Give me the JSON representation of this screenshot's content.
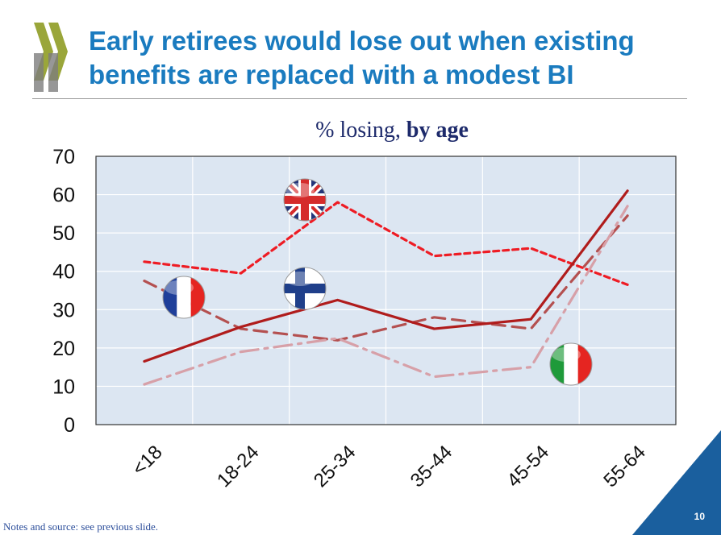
{
  "header": {
    "title": "Early retirees would lose out when existing benefits are replaced with a modest BI",
    "brand_color": "#1a7bbf",
    "logo_icon": "oecd-chevrons-icon"
  },
  "chart_data": {
    "type": "line",
    "title_plain": "% losing,",
    "title_bold": "by age",
    "categories": [
      "<18",
      "18-24",
      "25-34",
      "35-44",
      "45-54",
      "55-64"
    ],
    "ylim": [
      0,
      70
    ],
    "yticks": [
      "0",
      "10",
      "20",
      "30",
      "40",
      "50",
      "60",
      "70"
    ],
    "grid": true,
    "background": "#dce6f2",
    "series": [
      {
        "flag": "uk-flag-icon",
        "color": "#ee1c24",
        "style": "dashed",
        "values": [
          42.5,
          39.5,
          58,
          44,
          46,
          36.5
        ]
      },
      {
        "flag": "france-flag-icon",
        "color": "#b45050",
        "style": "longdash",
        "values": [
          37.5,
          25,
          22,
          28,
          25,
          54.5
        ]
      },
      {
        "flag": "finland-flag-icon",
        "color": "#b01c1c",
        "style": "solid",
        "values": [
          16.5,
          25.5,
          32.5,
          25,
          27.5,
          61
        ]
      },
      {
        "flag": "italy-flag-icon",
        "color": "#d7a0a8",
        "style": "dashdot",
        "values": [
          10.5,
          19,
          22.5,
          12.5,
          15,
          57
        ]
      }
    ]
  },
  "footer": {
    "notes": "Notes and source: see previous slide.",
    "page_number": "10",
    "corner_color": "#1a5f9e"
  }
}
